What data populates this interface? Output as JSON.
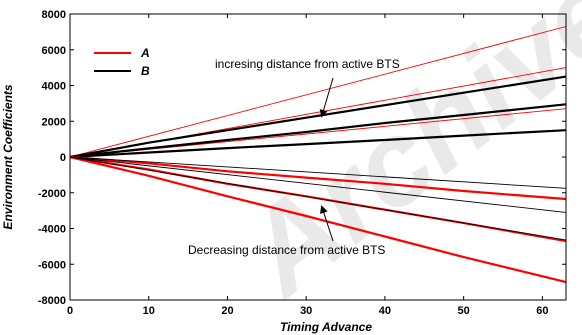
{
  "chart_data": {
    "type": "line",
    "title": "",
    "xlabel": "Timing Advance",
    "ylabel": "Environment Coefficients",
    "xlim": [
      0,
      63
    ],
    "ylim": [
      -8000,
      8000
    ],
    "xticks": [
      "0",
      "10",
      "20",
      "30",
      "40",
      "50",
      "60"
    ],
    "yticks": [
      "-8000",
      "-6000",
      "-4000",
      "-2000",
      "0",
      "2000",
      "4000",
      "6000",
      "8000"
    ],
    "grid": false,
    "legend_position": "top-left",
    "legend": [
      {
        "label": "A",
        "color": "#ff0000"
      },
      {
        "label": "B",
        "color": "#000000"
      }
    ],
    "annotations": [
      {
        "text": "incresing distance from active BTS",
        "arrow_to": [
          32,
          2300
        ]
      },
      {
        "text": "Decreasing distance from active BTS",
        "arrow_to": [
          32,
          -2800
        ]
      }
    ],
    "watermark": "Archive",
    "series": [
      {
        "legend": "A",
        "width": "thin",
        "x": [
          0,
          63
        ],
        "y": [
          0,
          7300
        ]
      },
      {
        "legend": "A",
        "width": "thin",
        "x": [
          0,
          63
        ],
        "y": [
          0,
          5000
        ]
      },
      {
        "legend": "A",
        "width": "thin",
        "x": [
          0,
          63
        ],
        "y": [
          0,
          2700
        ]
      },
      {
        "legend": "B",
        "width": "thick",
        "x": [
          0,
          10,
          20,
          30,
          40,
          50,
          63
        ],
        "y": [
          0,
          800,
          1500,
          2200,
          2900,
          3600,
          4500
        ]
      },
      {
        "legend": "B",
        "width": "thick",
        "x": [
          0,
          10,
          20,
          30,
          40,
          50,
          63
        ],
        "y": [
          0,
          480,
          950,
          1400,
          1900,
          2350,
          2950
        ]
      },
      {
        "legend": "B",
        "width": "thick",
        "x": [
          0,
          10,
          20,
          30,
          40,
          50,
          63
        ],
        "y": [
          0,
          250,
          500,
          720,
          950,
          1200,
          1500
        ]
      },
      {
        "legend": "A",
        "width": "thick",
        "x": [
          0,
          10,
          20,
          30,
          40,
          50,
          63
        ],
        "y": [
          0,
          -350,
          -800,
          -1150,
          -1500,
          -1900,
          -2350
        ]
      },
      {
        "legend": "A",
        "width": "thick",
        "x": [
          0,
          10,
          20,
          30,
          40,
          50,
          63
        ],
        "y": [
          0,
          -700,
          -1500,
          -2200,
          -2950,
          -3700,
          -4700
        ]
      },
      {
        "legend": "A",
        "width": "thick",
        "x": [
          0,
          10,
          20,
          30,
          40,
          50,
          63
        ],
        "y": [
          0,
          -1050,
          -2200,
          -3300,
          -4450,
          -5600,
          -7000
        ]
      },
      {
        "legend": "B",
        "width": "thin",
        "x": [
          0,
          63
        ],
        "y": [
          0,
          -1750
        ]
      },
      {
        "legend": "B",
        "width": "thin",
        "x": [
          0,
          63
        ],
        "y": [
          0,
          -3100
        ]
      },
      {
        "legend": "B",
        "width": "thin",
        "x": [
          0,
          63
        ],
        "y": [
          0,
          -4650
        ]
      }
    ]
  }
}
